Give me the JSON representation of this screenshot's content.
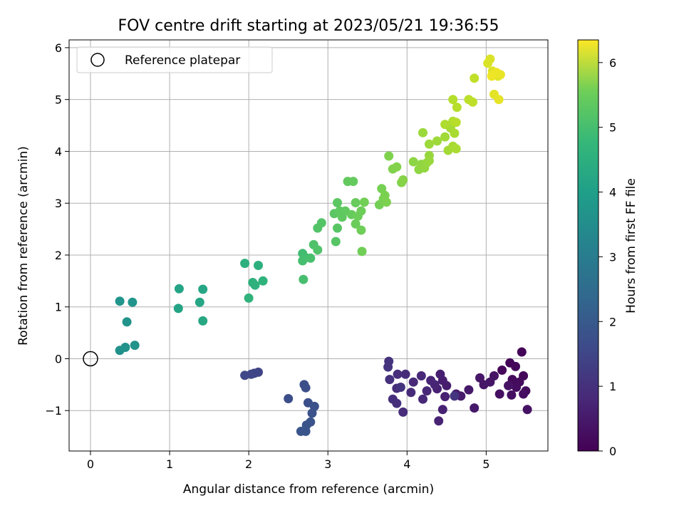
{
  "chart_data": {
    "type": "scatter",
    "title": "FOV centre drift starting at 2023/05/21 19:36:55",
    "xlabel": "Angular distance from reference (arcmin)",
    "ylabel": "Rotation from reference (arcmin)",
    "xlim": [
      -0.27,
      5.78
    ],
    "ylim": [
      -1.78,
      6.15
    ],
    "xticks": [
      0,
      1,
      2,
      3,
      4,
      5
    ],
    "yticks": [
      -1,
      0,
      1,
      2,
      3,
      4,
      5,
      6
    ],
    "grid": true,
    "legend": {
      "position": "top-left",
      "entries": [
        "Reference platepar"
      ]
    },
    "reference_point": {
      "x": 0,
      "y": 0,
      "marker": "open-circle"
    },
    "colorbar": {
      "label": "Hours from first FF file",
      "range": [
        0,
        6.35
      ],
      "ticks": [
        0,
        1,
        2,
        3,
        4,
        5,
        6
      ],
      "colormap": "viridis"
    },
    "series": [
      {
        "color_values_hours": true,
        "points": [
          [
            5.45,
            0.13,
            0.05
          ],
          [
            5.3,
            -0.08,
            0.08
          ],
          [
            5.37,
            -0.15,
            0.1
          ],
          [
            5.2,
            -0.22,
            0.12
          ],
          [
            5.47,
            -0.33,
            0.14
          ],
          [
            5.33,
            -0.4,
            0.16
          ],
          [
            5.42,
            -0.45,
            0.18
          ],
          [
            5.5,
            -0.62,
            0.2
          ],
          [
            5.38,
            -0.55,
            0.22
          ],
          [
            5.47,
            -0.68,
            0.24
          ],
          [
            5.32,
            -0.7,
            0.26
          ],
          [
            5.17,
            -0.68,
            0.28
          ],
          [
            5.52,
            -0.98,
            0.3
          ],
          [
            5.28,
            -0.52,
            0.32
          ],
          [
            5.1,
            -0.33,
            0.34
          ],
          [
            5.05,
            -0.45,
            0.36
          ],
          [
            4.97,
            -0.5,
            0.38
          ],
          [
            4.92,
            -0.37,
            0.4
          ],
          [
            4.78,
            -0.6,
            0.42
          ],
          [
            4.85,
            -0.95,
            0.44
          ],
          [
            4.68,
            -0.72,
            0.46
          ],
          [
            4.62,
            -0.68,
            0.48
          ],
          [
            4.5,
            -0.52,
            0.5
          ],
          [
            4.45,
            -0.42,
            0.52
          ],
          [
            4.42,
            -0.3,
            0.54
          ],
          [
            4.48,
            -0.73,
            0.56
          ],
          [
            4.38,
            -0.58,
            0.58
          ],
          [
            4.45,
            -0.98,
            0.6
          ],
          [
            4.4,
            -1.2,
            0.62
          ],
          [
            4.35,
            -0.5,
            0.64
          ],
          [
            4.3,
            -0.42,
            0.66
          ],
          [
            4.25,
            -0.62,
            0.68
          ],
          [
            4.2,
            -0.78,
            0.7
          ],
          [
            4.18,
            -0.33,
            0.72
          ],
          [
            4.08,
            -0.45,
            0.74
          ],
          [
            4.05,
            -0.65,
            0.76
          ],
          [
            3.98,
            -0.3,
            0.78
          ],
          [
            3.95,
            -1.03,
            0.8
          ],
          [
            3.88,
            -0.3,
            0.82
          ],
          [
            3.87,
            -0.57,
            0.84
          ],
          [
            3.82,
            -0.78,
            0.86
          ],
          [
            3.87,
            -0.86,
            0.88
          ],
          [
            3.78,
            -0.4,
            0.9
          ],
          [
            3.77,
            -0.05,
            0.92
          ],
          [
            3.76,
            -0.16,
            0.94
          ],
          [
            3.92,
            -0.55,
            0.96
          ],
          [
            4.6,
            -0.72,
            0.98
          ],
          [
            2.12,
            -0.26,
            1.3
          ],
          [
            2.07,
            -0.28,
            1.32
          ],
          [
            2.03,
            -0.3,
            1.34
          ],
          [
            1.95,
            -0.32,
            1.36
          ],
          [
            2.5,
            -0.77,
            1.5
          ],
          [
            2.7,
            -0.5,
            1.52
          ],
          [
            2.72,
            -0.56,
            1.54
          ],
          [
            2.75,
            -0.85,
            1.56
          ],
          [
            2.83,
            -0.92,
            1.58
          ],
          [
            2.8,
            -1.05,
            1.6
          ],
          [
            2.78,
            -1.22,
            1.62
          ],
          [
            2.73,
            -1.28,
            1.64
          ],
          [
            2.66,
            -1.4,
            1.66
          ],
          [
            2.72,
            -1.4,
            1.68
          ],
          [
            0.37,
            0.16,
            3.2
          ],
          [
            0.44,
            0.22,
            3.22
          ],
          [
            0.56,
            0.26,
            3.24
          ],
          [
            0.46,
            0.71,
            3.26
          ],
          [
            0.37,
            1.11,
            3.28
          ],
          [
            0.53,
            1.09,
            3.3
          ],
          [
            1.11,
            0.97,
            3.7
          ],
          [
            1.12,
            1.35,
            3.72
          ],
          [
            1.38,
            1.09,
            3.74
          ],
          [
            1.42,
            1.34,
            3.76
          ],
          [
            1.42,
            0.73,
            3.78
          ],
          [
            1.95,
            1.84,
            4.0
          ],
          [
            2.12,
            1.8,
            4.02
          ],
          [
            2.05,
            1.47,
            4.04
          ],
          [
            2.08,
            1.42,
            4.06
          ],
          [
            2.18,
            1.5,
            4.08
          ],
          [
            2.0,
            1.17,
            4.1
          ],
          [
            2.68,
            2.03,
            4.4
          ],
          [
            2.72,
            1.95,
            4.42
          ],
          [
            2.68,
            1.89,
            4.44
          ],
          [
            2.69,
            1.53,
            4.46
          ],
          [
            2.78,
            1.94,
            4.48
          ],
          [
            2.82,
            2.2,
            4.55
          ],
          [
            2.87,
            2.1,
            4.57
          ],
          [
            2.87,
            2.52,
            4.6
          ],
          [
            2.92,
            2.62,
            4.62
          ],
          [
            3.1,
            2.26,
            4.65
          ],
          [
            3.12,
            2.52,
            4.67
          ],
          [
            3.08,
            2.8,
            4.7
          ],
          [
            3.12,
            3.01,
            4.72
          ],
          [
            3.15,
            2.85,
            4.74
          ],
          [
            3.18,
            2.73,
            4.76
          ],
          [
            3.22,
            2.85,
            4.78
          ],
          [
            3.25,
            3.42,
            4.8
          ],
          [
            3.32,
            3.42,
            4.82
          ],
          [
            3.3,
            2.78,
            4.84
          ],
          [
            3.35,
            3.01,
            4.86
          ],
          [
            3.35,
            2.6,
            4.88
          ],
          [
            3.38,
            2.75,
            4.9
          ],
          [
            3.42,
            2.85,
            4.92
          ],
          [
            3.42,
            2.48,
            4.94
          ],
          [
            3.43,
            2.07,
            4.96
          ],
          [
            3.46,
            3.02,
            4.98
          ],
          [
            3.65,
            2.97,
            5.0
          ],
          [
            3.68,
            3.28,
            5.02
          ],
          [
            3.7,
            3.08,
            5.04
          ],
          [
            3.72,
            3.15,
            5.06
          ],
          [
            3.74,
            3.02,
            5.08
          ],
          [
            3.77,
            3.91,
            5.1
          ],
          [
            3.82,
            3.66,
            5.12
          ],
          [
            3.87,
            3.7,
            5.14
          ],
          [
            3.93,
            3.4,
            5.16
          ],
          [
            3.95,
            3.45,
            5.18
          ],
          [
            4.08,
            3.8,
            5.25
          ],
          [
            4.15,
            3.65,
            5.27
          ],
          [
            4.18,
            3.75,
            5.29
          ],
          [
            4.22,
            3.68,
            5.31
          ],
          [
            4.25,
            3.78,
            5.33
          ],
          [
            4.28,
            3.92,
            5.35
          ],
          [
            4.28,
            3.82,
            5.37
          ],
          [
            4.2,
            4.36,
            5.39
          ],
          [
            4.28,
            4.14,
            5.41
          ],
          [
            4.38,
            4.2,
            5.43
          ],
          [
            4.48,
            4.28,
            5.45
          ],
          [
            4.52,
            4.02,
            5.47
          ],
          [
            4.55,
            4.45,
            5.49
          ],
          [
            4.58,
            4.1,
            5.51
          ],
          [
            4.6,
            4.35,
            5.53
          ],
          [
            4.62,
            4.05,
            5.55
          ],
          [
            4.48,
            4.52,
            5.57
          ],
          [
            4.58,
            4.58,
            5.59
          ],
          [
            4.58,
            5.0,
            5.63
          ],
          [
            4.63,
            4.85,
            5.65
          ],
          [
            4.62,
            4.56,
            5.67
          ],
          [
            4.78,
            5.0,
            5.7
          ],
          [
            4.83,
            4.95,
            5.72
          ],
          [
            4.85,
            5.41,
            5.75
          ],
          [
            5.02,
            5.7,
            6.0
          ],
          [
            5.05,
            5.78,
            6.02
          ],
          [
            5.08,
            5.55,
            6.04
          ],
          [
            5.12,
            5.5,
            6.06
          ],
          [
            5.15,
            5.45,
            6.08
          ],
          [
            5.1,
            5.1,
            6.1
          ],
          [
            5.16,
            5.0,
            6.12
          ],
          [
            5.18,
            5.48,
            6.14
          ],
          [
            5.08,
            5.48,
            6.16
          ],
          [
            5.13,
            5.52,
            6.18
          ],
          [
            5.07,
            5.45,
            6.2
          ]
        ]
      }
    ]
  }
}
